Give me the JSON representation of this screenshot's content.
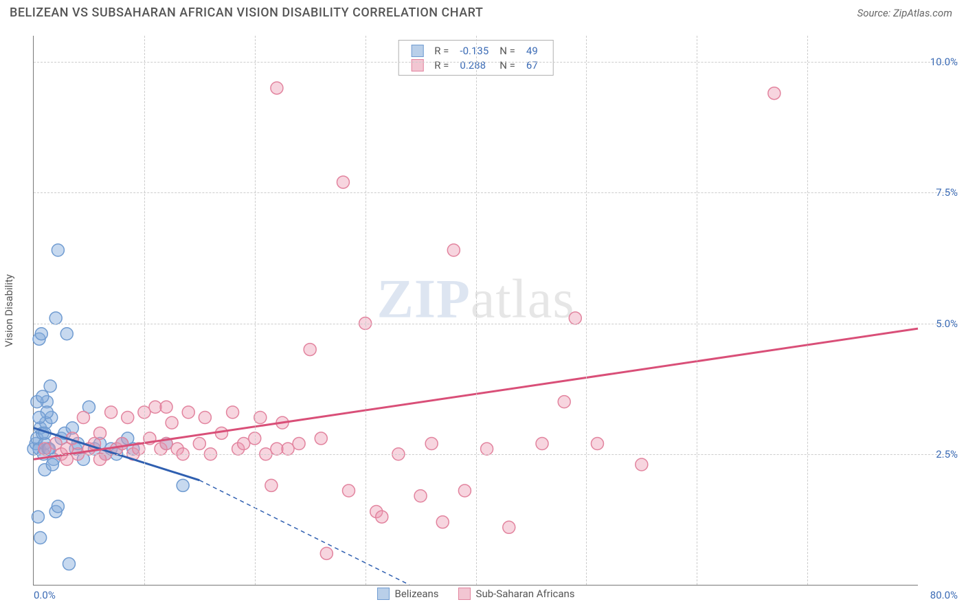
{
  "header": {
    "title": "BELIZEAN VS SUBSAHARAN AFRICAN VISION DISABILITY CORRELATION CHART",
    "source": "Source: ZipAtlas.com"
  },
  "chart": {
    "type": "scatter",
    "ylabel": "Vision Disability",
    "xlim": [
      0,
      80
    ],
    "ylim": [
      0,
      10.5
    ],
    "x_ticks": [
      0,
      80
    ],
    "x_tick_labels": [
      "0.0%",
      "80.0%"
    ],
    "y_ticks": [
      2.5,
      5.0,
      7.5,
      10.0
    ],
    "y_tick_labels": [
      "2.5%",
      "5.0%",
      "7.5%",
      "10.0%"
    ],
    "x_grid_at": [
      10,
      20,
      30,
      40,
      50,
      60,
      70
    ],
    "background_color": "#ffffff",
    "grid_color": "#cccccc",
    "watermark": {
      "zip": "ZIP",
      "atlas": "atlas"
    },
    "series": [
      {
        "name": "belizeans",
        "label": "Belizeans",
        "R": "-0.135",
        "N": "49",
        "marker_fill": "rgba(130,170,220,0.45)",
        "marker_stroke": "#6f9bd1",
        "marker_radius": 9,
        "trend_color": "#2f5fb0",
        "trend_width": 3,
        "trend_solid": {
          "x1": 0,
          "y1": 3.0,
          "x2": 15,
          "y2": 2.0
        },
        "trend_dash": {
          "x1": 15,
          "y1": 2.0,
          "x2": 34,
          "y2": 0.0
        },
        "swatch_fill": "#b9cfe9",
        "swatch_border": "#6f9bd1",
        "points": [
          [
            0.0,
            2.6
          ],
          [
            0.2,
            2.7
          ],
          [
            0.3,
            2.8
          ],
          [
            0.5,
            2.6
          ],
          [
            0.6,
            3.0
          ],
          [
            0.8,
            2.9
          ],
          [
            0.9,
            2.5
          ],
          [
            1.0,
            2.7
          ],
          [
            1.1,
            3.1
          ],
          [
            1.2,
            3.5
          ],
          [
            1.3,
            2.6
          ],
          [
            1.5,
            3.8
          ],
          [
            1.6,
            3.2
          ],
          [
            1.8,
            2.4
          ],
          [
            2.0,
            5.1
          ],
          [
            2.2,
            6.4
          ],
          [
            0.5,
            4.7
          ],
          [
            0.7,
            4.8
          ],
          [
            1.0,
            2.2
          ],
          [
            2.5,
            2.8
          ],
          [
            3.0,
            4.8
          ],
          [
            1.4,
            2.6
          ],
          [
            1.7,
            2.3
          ],
          [
            0.4,
            1.3
          ],
          [
            0.6,
            0.9
          ],
          [
            3.2,
            0.4
          ],
          [
            2.0,
            1.4
          ],
          [
            2.2,
            1.5
          ],
          [
            2.8,
            2.9
          ],
          [
            3.5,
            3.0
          ],
          [
            3.8,
            2.6
          ],
          [
            4.0,
            2.7
          ],
          [
            4.5,
            2.4
          ],
          [
            5.0,
            3.4
          ],
          [
            5.5,
            2.6
          ],
          [
            6.0,
            2.7
          ],
          [
            6.5,
            2.5
          ],
          [
            7.0,
            2.6
          ],
          [
            7.5,
            2.5
          ],
          [
            8.0,
            2.7
          ],
          [
            8.5,
            2.8
          ],
          [
            9.0,
            2.6
          ],
          [
            12.0,
            2.7
          ],
          [
            13.5,
            1.9
          ],
          [
            0.3,
            3.5
          ],
          [
            0.8,
            3.6
          ],
          [
            1.2,
            3.3
          ],
          [
            0.5,
            3.2
          ],
          [
            1.0,
            2.9
          ]
        ]
      },
      {
        "name": "subsaharan",
        "label": "Sub-Saharan Africans",
        "R": "0.288",
        "N": "67",
        "marker_fill": "rgba(235,150,175,0.40)",
        "marker_stroke": "#e2839e",
        "marker_radius": 9,
        "trend_color": "#d94f78",
        "trend_width": 3,
        "trend_solid": {
          "x1": 0,
          "y1": 2.4,
          "x2": 80,
          "y2": 4.9
        },
        "trend_dash": null,
        "swatch_fill": "#f2c6d2",
        "swatch_border": "#e2839e",
        "points": [
          [
            1.0,
            2.6
          ],
          [
            2.0,
            2.7
          ],
          [
            2.5,
            2.5
          ],
          [
            3.0,
            2.6
          ],
          [
            3.5,
            2.8
          ],
          [
            4.0,
            2.5
          ],
          [
            4.5,
            3.2
          ],
          [
            5.0,
            2.6
          ],
          [
            5.5,
            2.7
          ],
          [
            6.0,
            2.9
          ],
          [
            6.5,
            2.5
          ],
          [
            7.0,
            3.3
          ],
          [
            7.5,
            2.6
          ],
          [
            8.0,
            2.7
          ],
          [
            8.5,
            3.2
          ],
          [
            9.0,
            2.5
          ],
          [
            9.5,
            2.6
          ],
          [
            10.0,
            3.3
          ],
          [
            10.5,
            2.8
          ],
          [
            11.0,
            3.4
          ],
          [
            11.5,
            2.6
          ],
          [
            12.0,
            2.7
          ],
          [
            12.5,
            3.1
          ],
          [
            13.0,
            2.6
          ],
          [
            13.5,
            2.5
          ],
          [
            14.0,
            3.3
          ],
          [
            15.0,
            2.7
          ],
          [
            15.5,
            3.2
          ],
          [
            16.0,
            2.5
          ],
          [
            17.0,
            2.9
          ],
          [
            18.0,
            3.3
          ],
          [
            18.5,
            2.6
          ],
          [
            19.0,
            2.7
          ],
          [
            20.0,
            2.8
          ],
          [
            20.5,
            3.2
          ],
          [
            21.0,
            2.5
          ],
          [
            21.5,
            1.9
          ],
          [
            22.0,
            2.6
          ],
          [
            22.5,
            3.1
          ],
          [
            23.0,
            2.6
          ],
          [
            24.0,
            2.7
          ],
          [
            25.0,
            4.5
          ],
          [
            26.0,
            2.8
          ],
          [
            26.5,
            0.6
          ],
          [
            28.0,
            7.7
          ],
          [
            22.0,
            9.5
          ],
          [
            28.5,
            1.8
          ],
          [
            30.0,
            5.0
          ],
          [
            31.0,
            1.4
          ],
          [
            31.5,
            1.3
          ],
          [
            33.0,
            2.5
          ],
          [
            35.0,
            1.7
          ],
          [
            36.0,
            2.7
          ],
          [
            37.0,
            1.2
          ],
          [
            38.0,
            6.4
          ],
          [
            39.0,
            1.8
          ],
          [
            41.0,
            2.6
          ],
          [
            43.0,
            1.1
          ],
          [
            46.0,
            2.7
          ],
          [
            48.0,
            3.5
          ],
          [
            49.0,
            5.1
          ],
          [
            51.0,
            2.7
          ],
          [
            55.0,
            2.3
          ],
          [
            67.0,
            9.4
          ],
          [
            12.0,
            3.4
          ],
          [
            6.0,
            2.4
          ],
          [
            3.0,
            2.4
          ]
        ]
      }
    ]
  }
}
